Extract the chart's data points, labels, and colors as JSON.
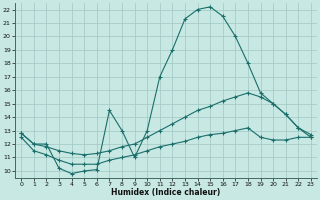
{
  "xlabel": "Humidex (Indice chaleur)",
  "xlim": [
    -0.5,
    23.5
  ],
  "ylim": [
    9.5,
    22.5
  ],
  "xticks": [
    0,
    1,
    2,
    3,
    4,
    5,
    6,
    7,
    8,
    9,
    10,
    11,
    12,
    13,
    14,
    15,
    16,
    17,
    18,
    19,
    20,
    21,
    22,
    23
  ],
  "yticks": [
    10,
    11,
    12,
    13,
    14,
    15,
    16,
    17,
    18,
    19,
    20,
    21,
    22
  ],
  "bg_color": "#c8e8e4",
  "line_color": "#1a6e6a",
  "grid_color": "#a0c8c4",
  "curve1_x": [
    0,
    1,
    2,
    3,
    4,
    5,
    6,
    7,
    8,
    9,
    10,
    11,
    12,
    13,
    14,
    15,
    16,
    17,
    18,
    19,
    20,
    21,
    22,
    23
  ],
  "curve1_y": [
    12.8,
    12.0,
    12.0,
    10.2,
    9.8,
    10.0,
    10.1,
    14.5,
    13.0,
    11.0,
    13.0,
    17.0,
    19.0,
    21.3,
    22.0,
    22.2,
    21.5,
    20.0,
    18.0,
    15.8,
    15.0,
    14.2,
    13.2,
    12.5
  ],
  "curve2_x": [
    0,
    1,
    2,
    3,
    4,
    5,
    6,
    7,
    8,
    9,
    10,
    11,
    12,
    13,
    14,
    15,
    16,
    17,
    18,
    19,
    20,
    21,
    22,
    23
  ],
  "curve2_y": [
    12.8,
    12.0,
    11.8,
    11.5,
    11.3,
    11.2,
    11.3,
    11.5,
    11.8,
    12.0,
    12.5,
    13.0,
    13.5,
    14.0,
    14.5,
    14.8,
    15.2,
    15.5,
    15.8,
    15.5,
    15.0,
    14.2,
    13.2,
    12.7
  ],
  "curve3_x": [
    0,
    1,
    2,
    3,
    4,
    5,
    6,
    7,
    8,
    9,
    10,
    11,
    12,
    13,
    14,
    15,
    16,
    17,
    18,
    19,
    20,
    21,
    22,
    23
  ],
  "curve3_y": [
    12.5,
    11.5,
    11.2,
    10.8,
    10.5,
    10.5,
    10.5,
    10.8,
    11.0,
    11.2,
    11.5,
    11.8,
    12.0,
    12.2,
    12.5,
    12.7,
    12.8,
    13.0,
    13.2,
    12.5,
    12.3,
    12.3,
    12.5,
    12.5
  ]
}
